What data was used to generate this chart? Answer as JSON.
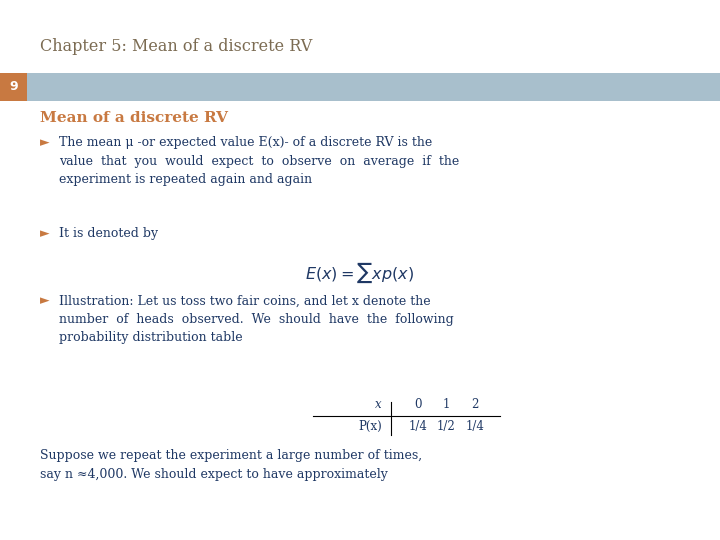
{
  "title": "Chapter 5: Mean of a discrete RV",
  "title_color": "#7B6B52",
  "slide_number": "9",
  "slide_num_bg": "#C87941",
  "header_bar_color": "#A8BFCC",
  "section_title": "Mean of a discrete RV",
  "section_title_color": "#C87941",
  "body_text_color": "#1F3864",
  "bg_color": "#FFFFFF",
  "bullet_marker": "►",
  "bullet1_text": "The mean μ -or expected value E(x)- of a discrete RV is the\nvalue  that  you  would  expect  to  observe  on  average  if  the\nexperiment is repeated again and again",
  "bullet2_text": "It is denoted by",
  "bullet3_text": "Illustration: Let us toss two fair coins, and let x denote the\nnumber  of  heads  observed.  We  should  have  the  following\nprobability distribution table",
  "last_para": "Suppose we repeat the experiment a large number of times,\nsay n ≈4,000. We should expect to have approximately",
  "font_family": "serif"
}
